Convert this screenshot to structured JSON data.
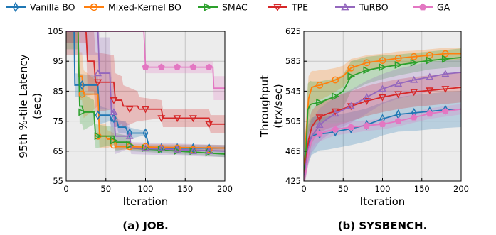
{
  "colors": {
    "Vanilla BO": "#1f77b4",
    "Mixed-Kernel BO": "#ff7f0e",
    "SMAC": "#2ca02c",
    "TPE": "#d62728",
    "TuRBO": "#9467bd",
    "GA": "#e377c2"
  },
  "legend": [
    {
      "name": "Vanilla BO",
      "marker": "diamond"
    },
    {
      "name": "Mixed-Kernel BO",
      "marker": "circle"
    },
    {
      "name": "SMAC",
      "marker": "triangle-right"
    },
    {
      "name": "TPE",
      "marker": "triangle-down"
    },
    {
      "name": "TuRBO",
      "marker": "triangle-up"
    },
    {
      "name": "GA",
      "marker": "pentagon"
    }
  ],
  "chart_data": [
    {
      "type": "line",
      "caption": "(a) JOB.",
      "xlabel": "Iteration",
      "ylabel": "95th %-tile Latency\n(sec)",
      "xlim": [
        0,
        200
      ],
      "ylim": [
        55,
        105
      ],
      "xticks": [
        0,
        50,
        100,
        150,
        200
      ],
      "yticks": [
        55,
        65,
        75,
        85,
        95,
        105
      ],
      "grid": true,
      "series": [
        {
          "name": "Vanilla BO",
          "x": [
            0,
            10,
            11,
            40,
            42,
            55,
            57,
            64,
            66,
            75,
            78,
            95,
            100,
            105,
            200
          ],
          "y": [
            105,
            105,
            87,
            87,
            77,
            77,
            75,
            75,
            73,
            73,
            71,
            71,
            71,
            66,
            66
          ],
          "band": [
            4,
            4,
            4,
            3,
            3,
            2,
            2,
            2,
            2,
            2,
            2,
            1,
            1,
            1,
            1
          ]
        },
        {
          "name": "Mixed-Kernel BO",
          "x": [
            0,
            15,
            16,
            20,
            22,
            40,
            42,
            50,
            52,
            60,
            62,
            200
          ],
          "y": [
            105,
            105,
            90,
            90,
            84,
            84,
            70,
            70,
            69,
            69,
            66.5,
            66
          ],
          "band": [
            8,
            8,
            8,
            8,
            8,
            4,
            4,
            4,
            3,
            2,
            1,
            1
          ]
        },
        {
          "name": "SMAC",
          "x": [
            0,
            15,
            17,
            20,
            22,
            35,
            37,
            60,
            62,
            80,
            82,
            200
          ],
          "y": [
            105,
            105,
            80,
            80,
            78,
            78,
            70,
            70,
            68,
            68,
            66,
            64
          ],
          "band": [
            6,
            6,
            6,
            6,
            6,
            4,
            4,
            3,
            3,
            2,
            1,
            1
          ]
        },
        {
          "name": "TPE",
          "x": [
            0,
            25,
            27,
            35,
            37,
            60,
            62,
            70,
            72,
            90,
            92,
            120,
            122,
            180,
            182,
            200
          ],
          "y": [
            105,
            105,
            95,
            95,
            88,
            88,
            82,
            82,
            80,
            80,
            79,
            79,
            76,
            76,
            74,
            74
          ],
          "band": [
            4,
            4,
            10,
            10,
            10,
            9,
            9,
            8,
            7,
            5,
            4,
            3,
            3,
            3,
            3,
            3
          ]
        },
        {
          "name": "TuRBO",
          "x": [
            0,
            40,
            42,
            55,
            57,
            60,
            62,
            80,
            82,
            200
          ],
          "y": [
            105,
            105,
            91,
            91,
            78,
            78,
            70,
            70,
            66,
            65
          ],
          "band": [
            8,
            8,
            12,
            12,
            12,
            8,
            6,
            4,
            2,
            2
          ]
        },
        {
          "name": "GA",
          "x": [
            0,
            98,
            100,
            185,
            186,
            200
          ],
          "y": [
            105,
            105,
            93,
            93,
            86,
            86
          ],
          "band": [
            0,
            0,
            2,
            2,
            4,
            4
          ]
        }
      ],
      "markers": [
        {
          "name": "Vanilla BO",
          "x": [
            20,
            40,
            60,
            80,
            100,
            120,
            140,
            160,
            180
          ],
          "y": [
            87,
            77,
            76,
            71,
            71,
            66,
            66,
            66,
            66
          ]
        },
        {
          "name": "Mixed-Kernel BO",
          "x": [
            20,
            40,
            60,
            80,
            100,
            120,
            140,
            160,
            180
          ],
          "y": [
            84,
            70,
            67,
            66.5,
            66.5,
            66,
            66,
            65.5,
            65.5
          ]
        },
        {
          "name": "SMAC",
          "x": [
            20,
            40,
            60,
            80,
            100,
            120,
            140,
            160,
            180
          ],
          "y": [
            78,
            70,
            68.5,
            67,
            66,
            65.5,
            65,
            65,
            64.5
          ]
        },
        {
          "name": "TPE",
          "x": [
            40,
            60,
            80,
            100,
            120,
            140,
            160,
            180
          ],
          "y": [
            88,
            82,
            79,
            79,
            76,
            76,
            76,
            74
          ]
        },
        {
          "name": "TuRBO",
          "x": [
            40,
            60,
            80,
            100,
            120,
            140,
            160,
            180
          ],
          "y": [
            91,
            78,
            70,
            66,
            66,
            65.5,
            65,
            65
          ]
        },
        {
          "name": "GA",
          "x": [
            100,
            120,
            140,
            160,
            180
          ],
          "y": [
            93,
            93,
            93,
            93,
            93
          ]
        }
      ]
    },
    {
      "type": "line",
      "caption": "(b) SYSBENCH.",
      "xlabel": "Iteration",
      "ylabel": "Throughput\n(trx/sec)",
      "xlim": [
        0,
        200
      ],
      "ylim": [
        425,
        625
      ],
      "xticks": [
        0,
        50,
        100,
        150,
        200
      ],
      "yticks": [
        425,
        465,
        505,
        545,
        585,
        625
      ],
      "grid": true,
      "series": [
        {
          "name": "Vanilla BO",
          "x": [
            0,
            3,
            6,
            10,
            15,
            20,
            30,
            40,
            60,
            80,
            100,
            120,
            140,
            160,
            180,
            200
          ],
          "y": [
            425,
            455,
            475,
            485,
            487,
            488,
            489,
            491,
            495,
            500,
            508,
            514,
            516,
            518,
            520,
            521
          ],
          "band": [
            10,
            20,
            25,
            25,
            24,
            22,
            22,
            22,
            22,
            22,
            22,
            23,
            24,
            24,
            24,
            24
          ]
        },
        {
          "name": "Mixed-Kernel BO",
          "x": [
            0,
            3,
            6,
            10,
            15,
            20,
            30,
            40,
            50,
            60,
            80,
            100,
            120,
            140,
            160,
            180,
            200
          ],
          "y": [
            425,
            490,
            535,
            550,
            552,
            553,
            556,
            560,
            565,
            576,
            583,
            586,
            589,
            591,
            593,
            595,
            595
          ],
          "band": [
            10,
            28,
            30,
            22,
            20,
            20,
            18,
            16,
            14,
            12,
            10,
            9,
            9,
            8,
            8,
            8,
            8
          ]
        },
        {
          "name": "SMAC",
          "x": [
            0,
            3,
            5,
            8,
            10,
            20,
            30,
            40,
            50,
            60,
            80,
            100,
            120,
            140,
            160,
            180,
            200
          ],
          "y": [
            425,
            470,
            520,
            527,
            528,
            530,
            534,
            538,
            545,
            565,
            573,
            577,
            580,
            583,
            586,
            588,
            590
          ],
          "band": [
            10,
            30,
            35,
            32,
            30,
            28,
            26,
            24,
            22,
            20,
            18,
            16,
            14,
            13,
            12,
            12,
            12
          ]
        },
        {
          "name": "TPE",
          "x": [
            0,
            3,
            6,
            10,
            15,
            20,
            30,
            40,
            60,
            80,
            100,
            120,
            140,
            160,
            180,
            200
          ],
          "y": [
            425,
            455,
            480,
            497,
            505,
            510,
            515,
            518,
            525,
            532,
            537,
            541,
            544,
            546,
            548,
            550
          ],
          "band": [
            10,
            20,
            25,
            22,
            20,
            20,
            20,
            20,
            20,
            20,
            20,
            20,
            20,
            20,
            20,
            20
          ]
        },
        {
          "name": "TuRBO",
          "x": [
            0,
            3,
            6,
            10,
            15,
            20,
            30,
            40,
            60,
            80,
            100,
            120,
            140,
            160,
            180,
            200
          ],
          "y": [
            425,
            450,
            470,
            485,
            492,
            500,
            508,
            515,
            525,
            537,
            548,
            555,
            560,
            564,
            568,
            570
          ],
          "band": [
            10,
            18,
            22,
            22,
            22,
            22,
            22,
            22,
            22,
            22,
            20,
            20,
            20,
            20,
            18,
            18
          ]
        },
        {
          "name": "GA",
          "x": [
            0,
            3,
            6,
            10,
            15,
            20,
            30,
            40,
            60,
            80,
            100,
            120,
            140,
            160,
            180,
            200
          ],
          "y": [
            425,
            440,
            465,
            480,
            485,
            488,
            492,
            494,
            497,
            499,
            501,
            505,
            510,
            515,
            518,
            521
          ],
          "band": [
            6,
            10,
            12,
            12,
            10,
            10,
            10,
            8,
            8,
            7,
            7,
            7,
            7,
            7,
            7,
            7
          ]
        }
      ],
      "markers": [
        {
          "name": "Vanilla BO",
          "x": [
            20,
            40,
            60,
            80,
            100,
            120,
            140,
            160,
            180
          ],
          "y": [
            488,
            491,
            495,
            500,
            508,
            514,
            516,
            518,
            520
          ]
        },
        {
          "name": "Mixed-Kernel BO",
          "x": [
            20,
            40,
            60,
            80,
            100,
            120,
            140,
            160,
            180
          ],
          "y": [
            553,
            560,
            576,
            583,
            586,
            589,
            591,
            593,
            595
          ]
        },
        {
          "name": "SMAC",
          "x": [
            20,
            40,
            60,
            80,
            100,
            120,
            140,
            160,
            180
          ],
          "y": [
            530,
            538,
            565,
            573,
            577,
            580,
            583,
            586,
            588
          ]
        },
        {
          "name": "TPE",
          "x": [
            20,
            40,
            60,
            80,
            100,
            120,
            140,
            160,
            180
          ],
          "y": [
            510,
            518,
            525,
            532,
            537,
            541,
            544,
            546,
            548
          ]
        },
        {
          "name": "TuRBO",
          "x": [
            20,
            40,
            60,
            80,
            100,
            120,
            140,
            160,
            180
          ],
          "y": [
            500,
            515,
            525,
            537,
            548,
            555,
            560,
            564,
            568
          ]
        },
        {
          "name": "GA",
          "x": [
            20,
            40,
            60,
            80,
            100,
            120,
            140,
            160,
            180
          ],
          "y": [
            488,
            494,
            497,
            499,
            501,
            505,
            510,
            515,
            518
          ]
        }
      ]
    }
  ]
}
